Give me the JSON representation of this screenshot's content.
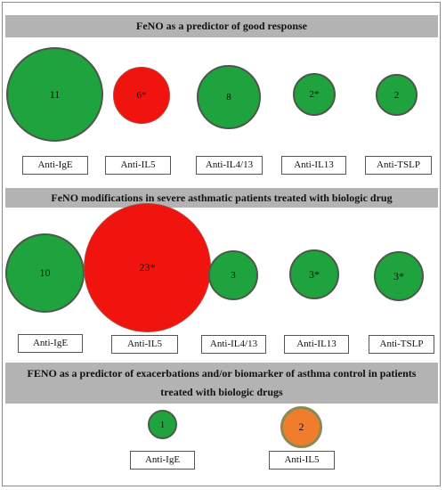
{
  "sections": [
    {
      "title": "FeNO as a predictor of good response",
      "items": [
        {
          "value": "11",
          "label": "Anti-IgE"
        },
        {
          "value": "6*",
          "label": "Anti-IL5"
        },
        {
          "value": "8",
          "label": "Anti-IL4/13"
        },
        {
          "value": "2*",
          "label": "Anti-IL13"
        },
        {
          "value": "2",
          "label": "Anti-TSLP"
        }
      ]
    },
    {
      "title": "FeNO modifications in severe asthmatic patients treated with biologic drug",
      "items": [
        {
          "value": "10",
          "label": "Anti-IgE"
        },
        {
          "value": "23*",
          "label": "Anti-IL5"
        },
        {
          "value": "3",
          "label": "Anti-IL4/13"
        },
        {
          "value": "3*",
          "label": "Anti-IL13"
        },
        {
          "value": "3*",
          "label": "Anti-TSLP"
        }
      ]
    },
    {
      "title_line1": "FENO as a predictor of exacerbations and/or biomarker of asthma control in patients",
      "title_line2": "treated with biologic drugs",
      "items": [
        {
          "value": "1",
          "label": "Anti-IgE"
        },
        {
          "value": "2",
          "label": "Anti-IL5"
        }
      ]
    }
  ],
  "colors": {
    "header_bg": "#b3b3b3",
    "green": "#1fa33f",
    "red": "#f0130e",
    "orange": "#f07d2c"
  }
}
